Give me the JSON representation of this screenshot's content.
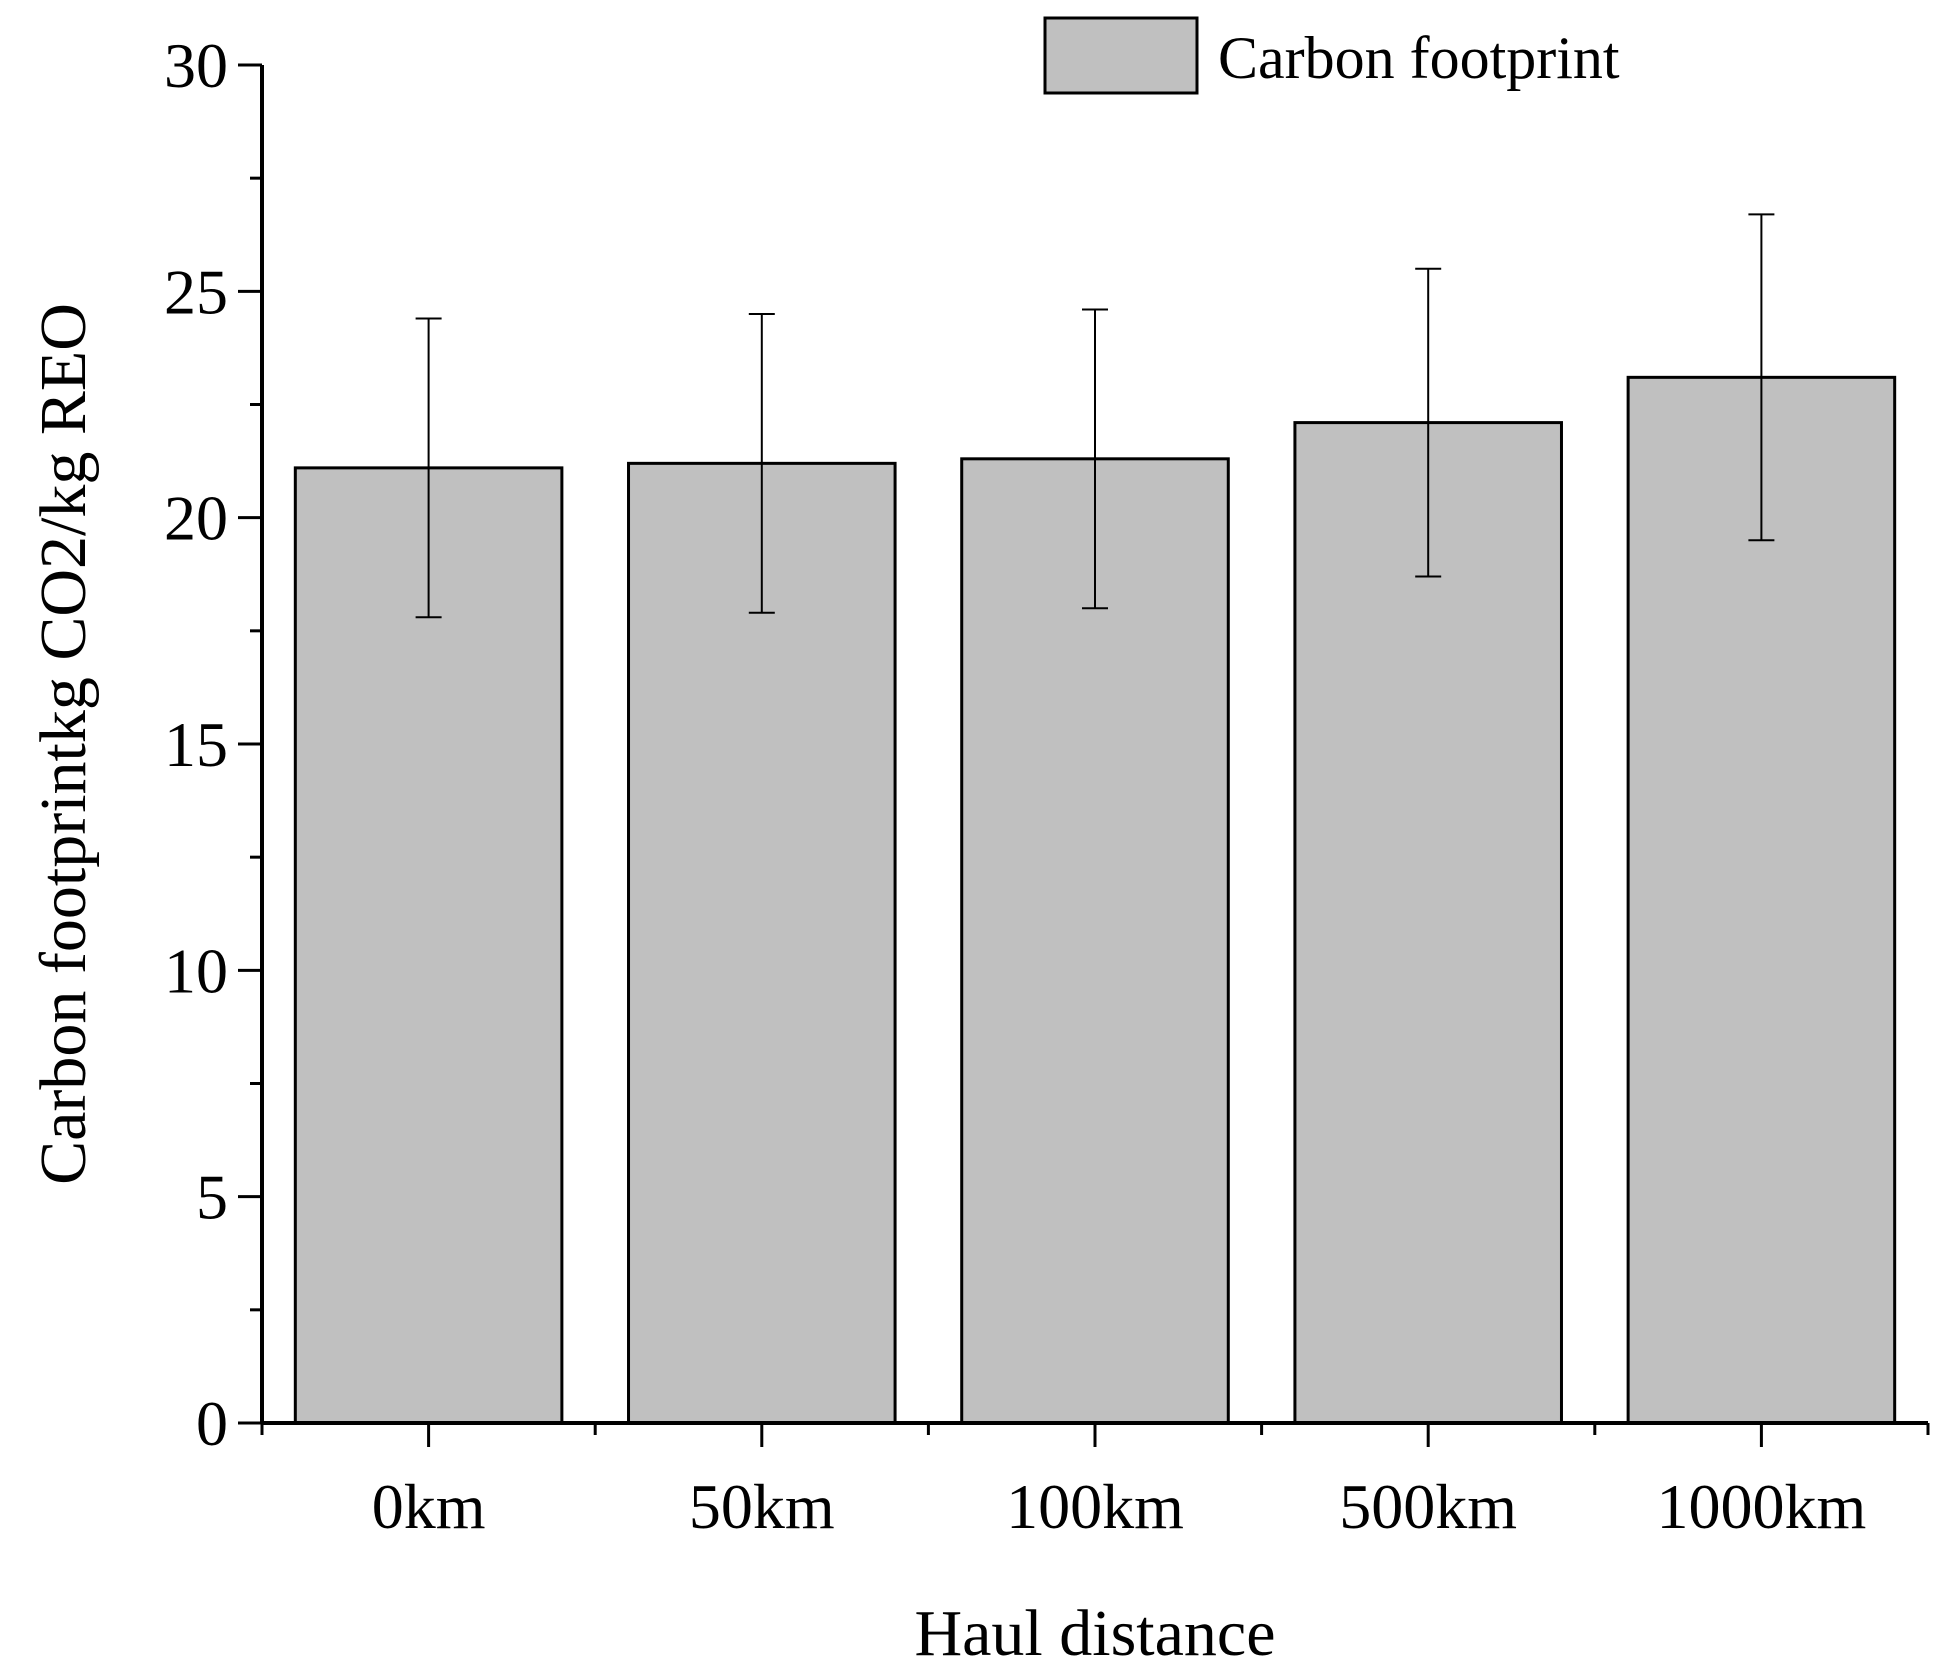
{
  "chart_data": {
    "type": "bar",
    "title": "",
    "xlabel": "Haul distance",
    "ylabel": "Carbon footprintkg CO2/kg REO",
    "categories": [
      "0km",
      "50km",
      "100km",
      "500km",
      "1000km"
    ],
    "series": [
      {
        "name": "Carbon footprint",
        "values": [
          21.1,
          21.2,
          21.3,
          22.1,
          23.1
        ],
        "error_low": [
          17.8,
          17.9,
          18.0,
          18.7,
          19.5
        ],
        "error_high": [
          24.4,
          24.5,
          24.6,
          25.5,
          26.7
        ]
      }
    ],
    "ylim": [
      0,
      30
    ],
    "yticks": [
      "0",
      "5",
      "10",
      "15",
      "20",
      "25",
      "30"
    ],
    "grid": false,
    "legend": {
      "position": "top-right"
    },
    "colors": {
      "bar_fill": "#c0c0c0",
      "bar_stroke": "#000000"
    }
  }
}
